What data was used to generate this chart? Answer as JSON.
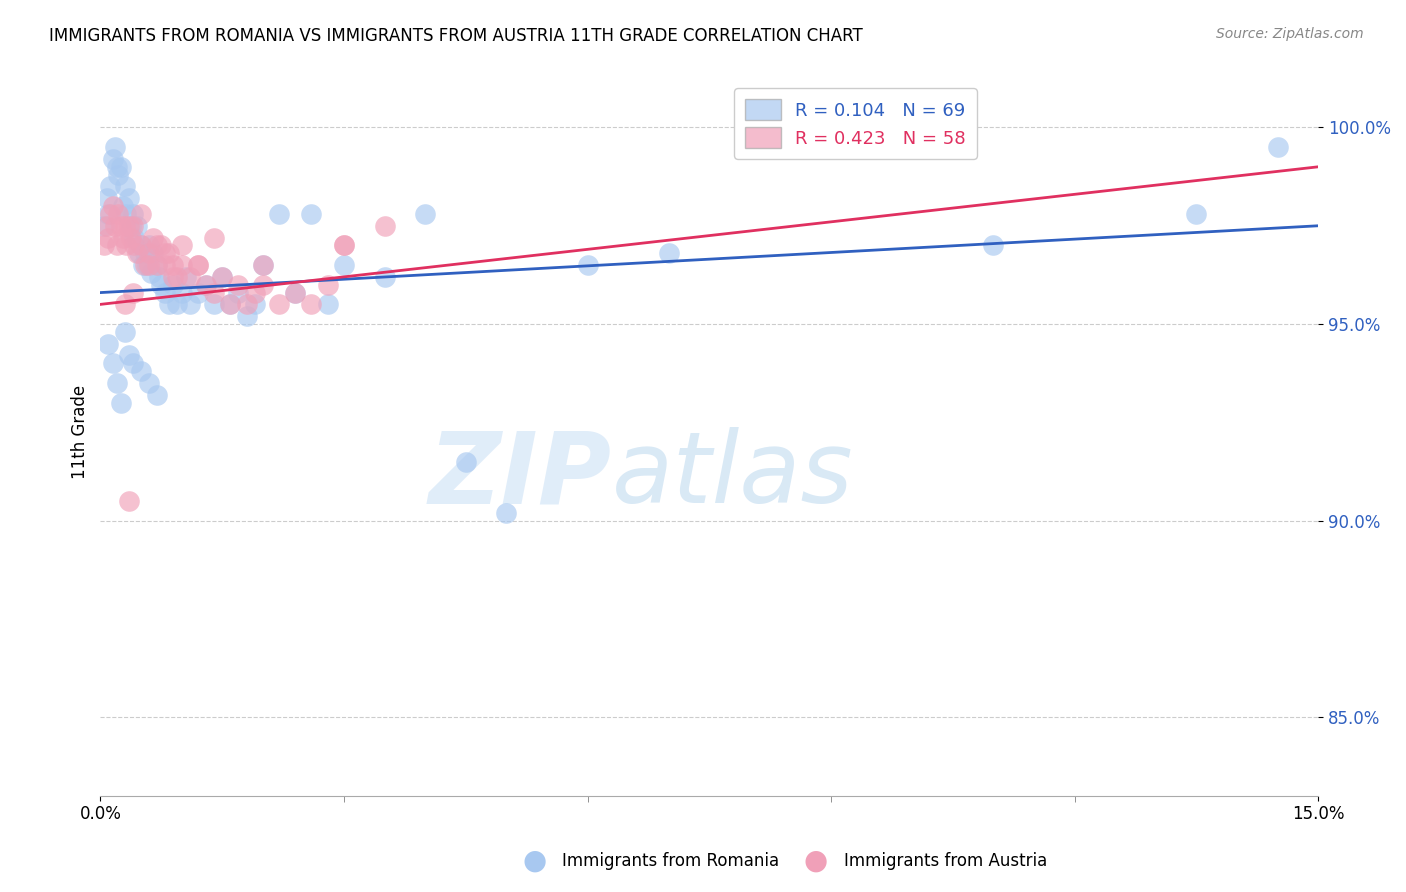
{
  "title": "IMMIGRANTS FROM ROMANIA VS IMMIGRANTS FROM AUSTRIA 11TH GRADE CORRELATION CHART",
  "source": "Source: ZipAtlas.com",
  "ylabel": "11th Grade",
  "xlim": [
    0.0,
    15.0
  ],
  "ylim": [
    83.0,
    101.5
  ],
  "yticks": [
    85.0,
    90.0,
    95.0,
    100.0
  ],
  "ytick_labels": [
    "85.0%",
    "90.0%",
    "95.0%",
    "100.0%"
  ],
  "romania_color": "#a8c8f0",
  "austria_color": "#f0a0b8",
  "romania_line_color": "#3060c0",
  "austria_line_color": "#e03060",
  "romania_R": 0.104,
  "romania_N": 69,
  "austria_R": 0.423,
  "austria_N": 58,
  "legend_romania": "Immigrants from Romania",
  "legend_austria": "Immigrants from Austria",
  "background_color": "#ffffff",
  "watermark_zip": "ZIP",
  "watermark_atlas": "atlas",
  "romania_x": [
    0.05,
    0.08,
    0.1,
    0.12,
    0.15,
    0.18,
    0.2,
    0.22,
    0.25,
    0.28,
    0.3,
    0.32,
    0.35,
    0.38,
    0.4,
    0.42,
    0.45,
    0.48,
    0.5,
    0.52,
    0.55,
    0.58,
    0.6,
    0.62,
    0.65,
    0.7,
    0.72,
    0.75,
    0.8,
    0.85,
    0.9,
    0.95,
    1.0,
    1.05,
    1.1,
    1.2,
    1.3,
    1.4,
    1.5,
    1.6,
    1.7,
    1.8,
    1.9,
    2.0,
    2.2,
    2.4,
    2.6,
    2.8,
    3.0,
    3.5,
    4.0,
    4.5,
    5.0,
    6.0,
    7.0,
    9.5,
    11.0,
    13.5,
    14.5,
    0.1,
    0.15,
    0.2,
    0.25,
    0.3,
    0.35,
    0.4,
    0.5,
    0.6,
    0.7
  ],
  "romania_y": [
    97.5,
    98.2,
    97.8,
    98.5,
    99.2,
    99.5,
    99.0,
    98.8,
    99.0,
    98.0,
    98.5,
    97.8,
    98.2,
    97.5,
    97.8,
    97.2,
    97.5,
    96.8,
    97.0,
    96.5,
    96.8,
    96.5,
    97.0,
    96.3,
    96.8,
    96.5,
    96.2,
    96.0,
    95.8,
    95.5,
    96.0,
    95.5,
    95.8,
    96.2,
    95.5,
    95.8,
    96.0,
    95.5,
    96.2,
    95.5,
    95.8,
    95.2,
    95.5,
    96.5,
    97.8,
    95.8,
    97.8,
    95.5,
    96.5,
    96.2,
    97.8,
    91.5,
    90.2,
    96.5,
    96.8,
    100.2,
    97.0,
    97.8,
    99.5,
    94.5,
    94.0,
    93.5,
    93.0,
    94.8,
    94.2,
    94.0,
    93.8,
    93.5,
    93.2
  ],
  "austria_x": [
    0.05,
    0.08,
    0.1,
    0.12,
    0.15,
    0.18,
    0.2,
    0.22,
    0.25,
    0.28,
    0.3,
    0.32,
    0.35,
    0.38,
    0.4,
    0.42,
    0.45,
    0.5,
    0.55,
    0.6,
    0.65,
    0.7,
    0.75,
    0.8,
    0.85,
    0.9,
    0.95,
    1.0,
    1.1,
    1.2,
    1.3,
    1.4,
    1.5,
    1.6,
    1.7,
    1.8,
    1.9,
    2.0,
    2.2,
    2.4,
    2.6,
    2.8,
    3.0,
    3.5,
    0.3,
    0.4,
    0.5,
    0.6,
    0.7,
    0.8,
    0.9,
    1.0,
    1.2,
    1.4,
    2.0,
    3.0,
    8.5,
    0.35
  ],
  "austria_y": [
    97.0,
    97.5,
    97.2,
    97.8,
    98.0,
    97.5,
    97.0,
    97.8,
    97.5,
    97.2,
    97.5,
    97.0,
    97.5,
    97.2,
    97.5,
    97.0,
    96.8,
    97.0,
    96.5,
    96.8,
    97.2,
    96.5,
    97.0,
    96.5,
    96.8,
    96.5,
    96.2,
    96.5,
    96.2,
    96.5,
    96.0,
    95.8,
    96.2,
    95.5,
    96.0,
    95.5,
    95.8,
    96.0,
    95.5,
    95.8,
    95.5,
    96.0,
    97.0,
    97.5,
    95.5,
    95.8,
    97.8,
    96.5,
    97.0,
    96.8,
    96.2,
    97.0,
    96.5,
    97.2,
    96.5,
    97.0,
    99.5,
    90.5
  ],
  "romania_trend_x": [
    0.0,
    15.0
  ],
  "romania_trend_y": [
    95.8,
    97.5
  ],
  "austria_trend_x": [
    0.0,
    15.0
  ],
  "austria_trend_y": [
    95.5,
    99.0
  ]
}
